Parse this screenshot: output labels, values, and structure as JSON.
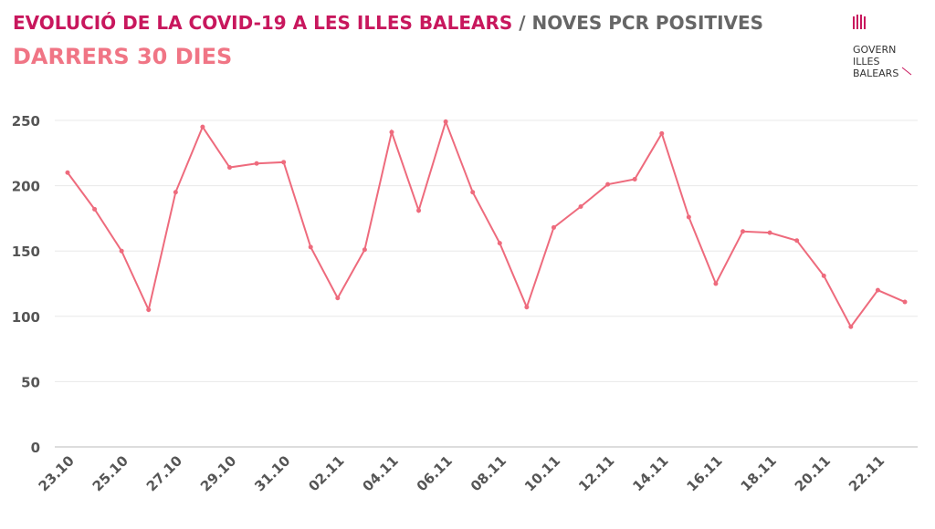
{
  "logo": {
    "lines": [
      "GOVERN",
      "ILLES",
      "BALEARS"
    ]
  },
  "chart_data": {
    "type": "line",
    "title": "EVOLUCIÓ DE LA COVID-19 A LES ILLES BALEARS",
    "title_secondary": "/ NOVES PCR POSITIVES",
    "subtitle": "DARRERS 30 DIES",
    "categories": [
      "23.10",
      null,
      "25.10",
      null,
      "27.10",
      null,
      "29.10",
      null,
      "31.10",
      null,
      "02.11",
      null,
      "04.11",
      null,
      "06.11",
      null,
      "08.11",
      null,
      "10.11",
      null,
      "12.11",
      null,
      "14.11",
      null,
      "16.11",
      null,
      "18.11",
      null,
      "20.11",
      null,
      "22.11",
      null
    ],
    "values": [
      210,
      182,
      150,
      105,
      195,
      245,
      214,
      217,
      218,
      153,
      114,
      151,
      241,
      181,
      249,
      195,
      156,
      107,
      168,
      184,
      201,
      205,
      240,
      176,
      125,
      165,
      164,
      158,
      131,
      92,
      120,
      111
    ],
    "color": "#ee6b7d",
    "ylim": [
      0,
      250
    ],
    "yticks": [
      0,
      50,
      100,
      150,
      200,
      250
    ],
    "grid": true
  }
}
